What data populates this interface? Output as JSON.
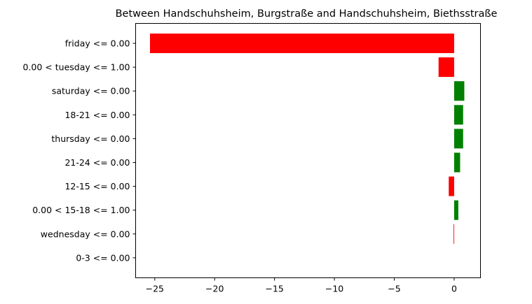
{
  "chart_data": {
    "type": "bar",
    "orientation": "horizontal",
    "title": "Between Handschuhsheim, Burgstraße and Handschuhsheim, Biethsstraße",
    "xlabel": "",
    "ylabel": "",
    "categories": [
      "friday <= 0.00",
      "0.00 < tuesday <= 1.00",
      "saturday <= 0.00",
      "18-21 <= 0.00",
      "thursday <= 0.00",
      "21-24 <= 0.00",
      "12-15 <= 0.00",
      "0.00 < 15-18 <= 1.00",
      "wednesday <= 0.00",
      "0-3 <= 0.00"
    ],
    "values": [
      -25.4,
      -1.3,
      0.85,
      0.75,
      0.75,
      0.5,
      -0.45,
      0.35,
      -0.05,
      0.0
    ],
    "xlim": [
      -26.6,
      2.2
    ],
    "xticks": [
      -25,
      -20,
      -15,
      -10,
      -5,
      0
    ],
    "xtick_labels": [
      "−25",
      "−20",
      "−15",
      "−10",
      "−5",
      "0"
    ],
    "grid": false,
    "colors": {
      "positive": "#008000",
      "negative": "#ff0000"
    }
  }
}
